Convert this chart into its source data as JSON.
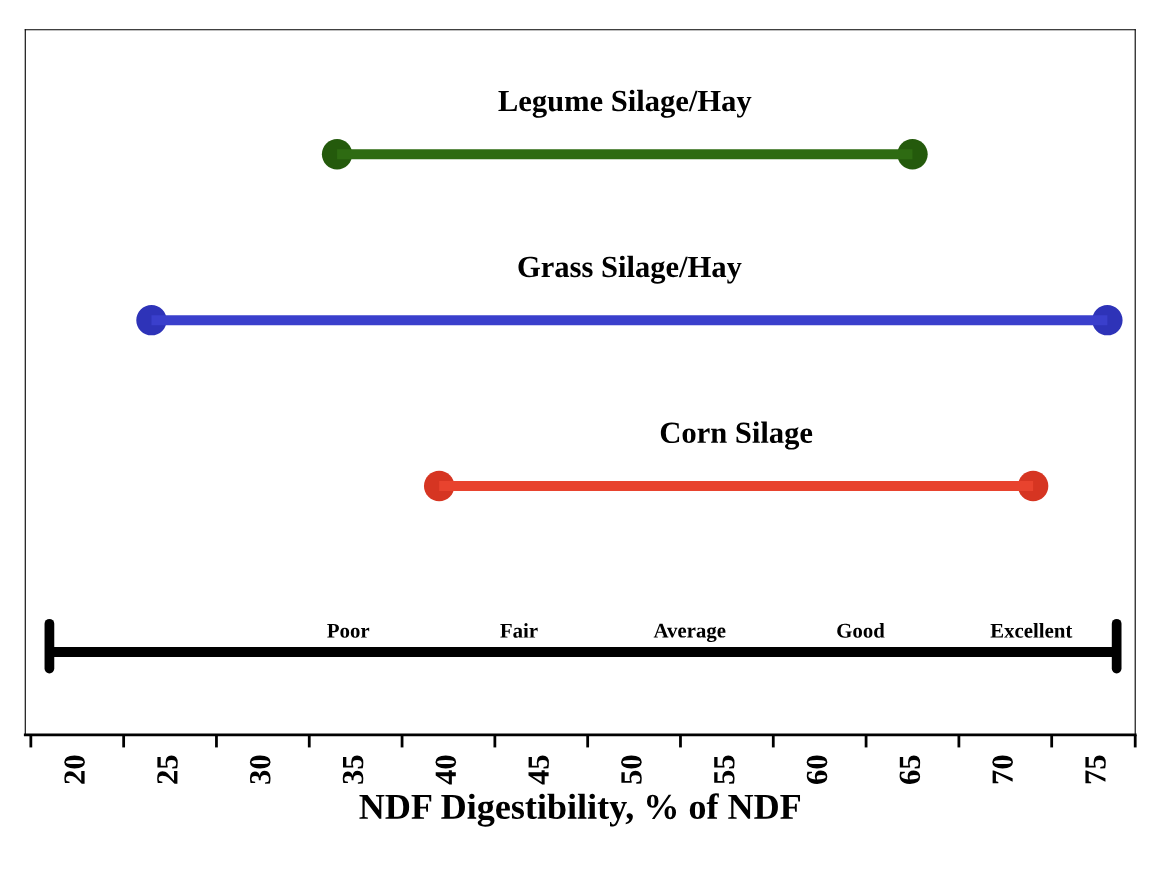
{
  "chart_data": {
    "type": "bar",
    "orientation": "horizontal",
    "xlabel": "NDF Digestibility, % of NDF",
    "categories": [
      "Legume Silage/Hay",
      "Grass Silage/Hay",
      "Corn Silage",
      null
    ],
    "base": [
      34,
      24,
      39.5,
      18.5
    ],
    "values": [
      31,
      51.5,
      32,
      57.5
    ],
    "colors": [
      "#2e6b12",
      "#3a3fcc",
      "#e8432e",
      "#000000"
    ],
    "series": [
      {
        "type": "scatter",
        "x": [
          "Legume Silage/Hay",
          "Grass Silage/Hay",
          "Corn Silage"
        ],
        "values": [
          34,
          24,
          39.5
        ],
        "colors": [
          "#245a0c",
          "#2e33b8",
          "#d63522"
        ],
        "marker": "circle"
      },
      {
        "type": "scatter",
        "x": [
          "Legume Silage/Hay",
          "Grass Silage/Hay",
          "Corn Silage"
        ],
        "values": [
          65,
          75.5,
          71.5
        ],
        "colors": [
          "#245a0c",
          "#2e33b8",
          "#d63522"
        ],
        "marker": "circle"
      }
    ],
    "xlim": [
      17.2,
      77
    ],
    "xticks": [
      {
        "value": 17.5,
        "label": null
      },
      20,
      {
        "value": 22.5,
        "label": null
      },
      25,
      {
        "value": 27.5,
        "label": null
      },
      30,
      {
        "value": 32.5,
        "label": null
      },
      35,
      {
        "value": 37.5,
        "label": null
      },
      40,
      {
        "value": 42.5,
        "label": null
      },
      45,
      {
        "value": 47.5,
        "label": null
      },
      50,
      {
        "value": 52.5,
        "label": null
      },
      55,
      {
        "value": 57.5,
        "label": null
      },
      60,
      {
        "value": 62.5,
        "label": null
      },
      65,
      {
        "value": 67.5,
        "label": null
      },
      70,
      {
        "value": 72.5,
        "label": null
      },
      75,
      {
        "value": 77,
        "label": null
      }
    ],
    "annotations": [
      "Poor",
      "Fair",
      "Average",
      "Good",
      "Excellent"
    ],
    "grid": false,
    "legend": false
  }
}
